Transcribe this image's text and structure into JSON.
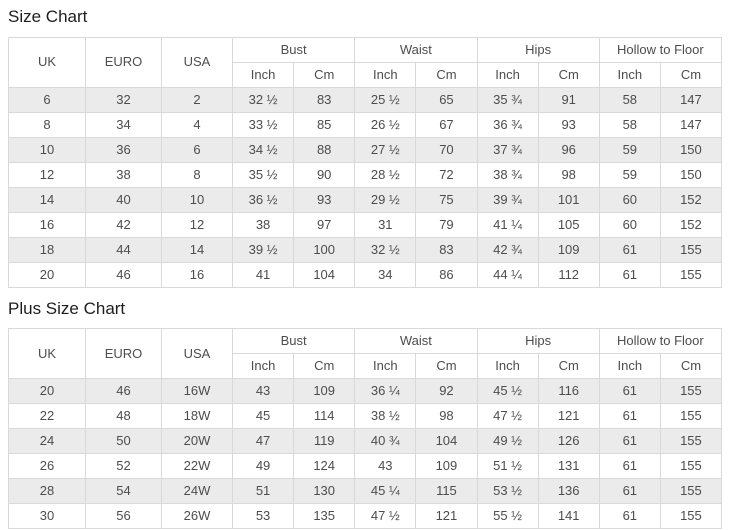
{
  "colors": {
    "stripe_row": "#ebebeb",
    "table_border": "#d9d9d9",
    "cell_text": "#4d4d4d",
    "title_text": "#1d1d1d"
  },
  "tables": [
    {
      "title": "Size Chart",
      "base_columns": [
        "UK",
        "EURO",
        "USA"
      ],
      "measure_groups": [
        "Bust",
        "Waist",
        "Hips",
        "Hollow to Floor"
      ],
      "units": [
        "Inch",
        "Cm"
      ],
      "rows": [
        [
          "6",
          "32",
          "2",
          "32 ½",
          "83",
          "25 ½",
          "65",
          "35 ¾",
          "91",
          "58",
          "147"
        ],
        [
          "8",
          "34",
          "4",
          "33 ½",
          "85",
          "26 ½",
          "67",
          "36 ¾",
          "93",
          "58",
          "147"
        ],
        [
          "10",
          "36",
          "6",
          "34 ½",
          "88",
          "27 ½",
          "70",
          "37 ¾",
          "96",
          "59",
          "150"
        ],
        [
          "12",
          "38",
          "8",
          "35 ½",
          "90",
          "28 ½",
          "72",
          "38 ¾",
          "98",
          "59",
          "150"
        ],
        [
          "14",
          "40",
          "10",
          "36 ½",
          "93",
          "29 ½",
          "75",
          "39 ¾",
          "101",
          "60",
          "152"
        ],
        [
          "16",
          "42",
          "12",
          "38",
          "97",
          "31",
          "79",
          "41 ¼",
          "105",
          "60",
          "152"
        ],
        [
          "18",
          "44",
          "14",
          "39 ½",
          "100",
          "32 ½",
          "83",
          "42 ¾",
          "109",
          "61",
          "155"
        ],
        [
          "20",
          "46",
          "16",
          "41",
          "104",
          "34",
          "86",
          "44 ¼",
          "112",
          "61",
          "155"
        ]
      ]
    },
    {
      "title": "Plus Size Chart",
      "base_columns": [
        "UK",
        "EURO",
        "USA"
      ],
      "measure_groups": [
        "Bust",
        "Waist",
        "Hips",
        "Hollow to Floor"
      ],
      "units": [
        "Inch",
        "Cm"
      ],
      "rows": [
        [
          "20",
          "46",
          "16W",
          "43",
          "109",
          "36 ¼",
          "92",
          "45 ½",
          "116",
          "61",
          "155"
        ],
        [
          "22",
          "48",
          "18W",
          "45",
          "114",
          "38 ½",
          "98",
          "47 ½",
          "121",
          "61",
          "155"
        ],
        [
          "24",
          "50",
          "20W",
          "47",
          "119",
          "40 ¾",
          "104",
          "49 ½",
          "126",
          "61",
          "155"
        ],
        [
          "26",
          "52",
          "22W",
          "49",
          "124",
          "43",
          "109",
          "51 ½",
          "131",
          "61",
          "155"
        ],
        [
          "28",
          "54",
          "24W",
          "51",
          "130",
          "45 ¼",
          "115",
          "53 ½",
          "136",
          "61",
          "155"
        ],
        [
          "30",
          "56",
          "26W",
          "53",
          "135",
          "47 ½",
          "121",
          "55 ½",
          "141",
          "61",
          "155"
        ]
      ]
    }
  ]
}
